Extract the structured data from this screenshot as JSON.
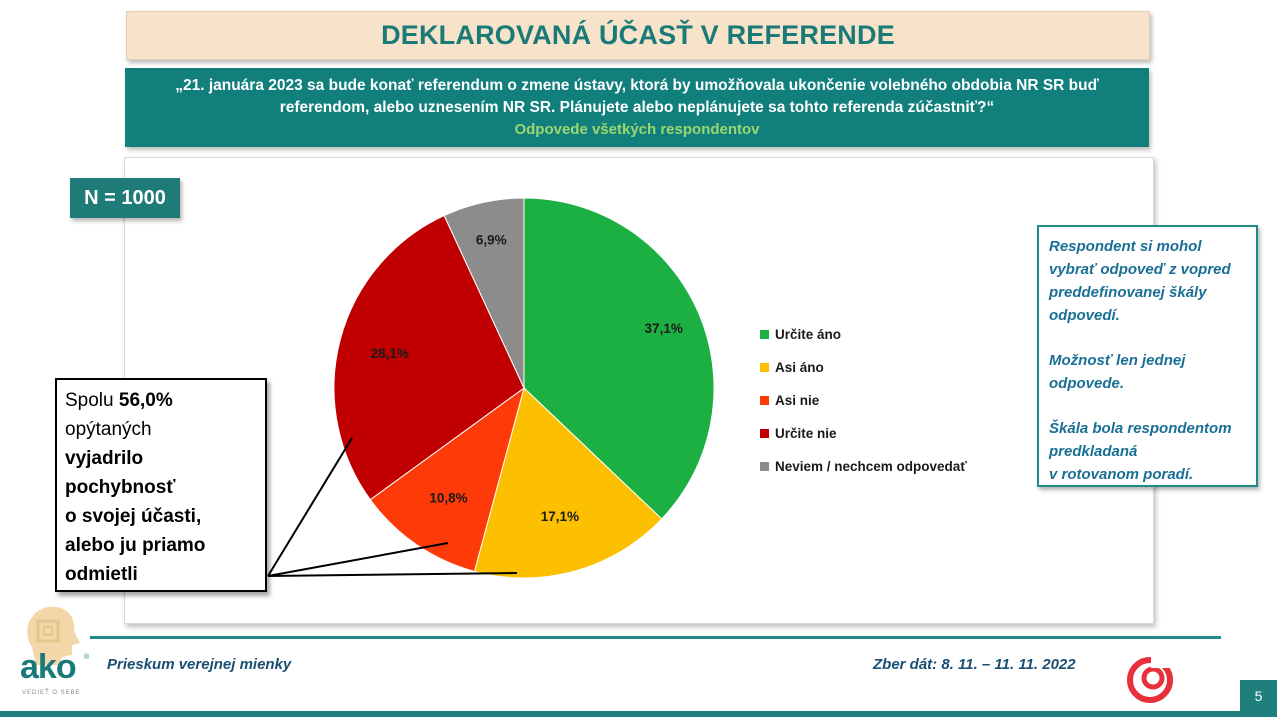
{
  "header": {
    "title": "DEKLAROVANÁ ÚČASŤ V REFERENDE",
    "question_line1": "„21. januára 2023 sa bude konať referendum o zmene ústavy, ktorá by umožňovala ukončenie volebného obdobia NR SR buď",
    "question_line2": "referendom, alebo uznesením NR SR. Plánujete alebo neplánujete sa tohto referenda zúčastniť?“",
    "question_sub": "Odpovede všetkých respondentov"
  },
  "sample": {
    "label": "N = 1000"
  },
  "chart_data": {
    "type": "pie",
    "slices": [
      {
        "label": "Určite áno",
        "value": 37.1,
        "display": "37,1%",
        "color": "#1cb043"
      },
      {
        "label": "Asi áno",
        "value": 17.1,
        "display": "17,1%",
        "color": "#fcc000"
      },
      {
        "label": "Asi nie",
        "value": 10.8,
        "display": "10,8%",
        "color": "#ff3a09"
      },
      {
        "label": "Určite nie",
        "value": 28.1,
        "display": "28,1%",
        "color": "#c00000"
      },
      {
        "label": "Neviem / nechcem odpovedať",
        "value": 6.9,
        "display": "6,9%",
        "color": "#8c8c8c"
      }
    ],
    "legend_position": "right"
  },
  "summary": {
    "t1": "Spolu ",
    "t2": "56,0%",
    "t3": "opýtaných",
    "t4": "vyjadrilo",
    "t5": "pochybnosť",
    "t6": "o svojej účasti,",
    "t7": "alebo ju priamo",
    "t8": "odmietli"
  },
  "notes": {
    "p1": "Respondent si mohol\nvybrať odpoveď z vopred\npreddefinovanej škály\nodpovedí.",
    "p2": "Možnosť len jednej\nodpovede.",
    "p3": "Škála bola respondentom\npredkladaná\nv rotovanom poradí."
  },
  "footer": {
    "left": "Prieskum verejnej mienky",
    "right": "Zber dát: 8. 11. – 11. 11. 2022",
    "page": "5",
    "logo_text": "ako",
    "logo_reg": "®",
    "logo_tagline": "VEDIEŤ O SEBE"
  },
  "colors": {
    "teal": "#11807d",
    "accent_green": "#9bd66e",
    "note_text": "#1a6f95"
  }
}
